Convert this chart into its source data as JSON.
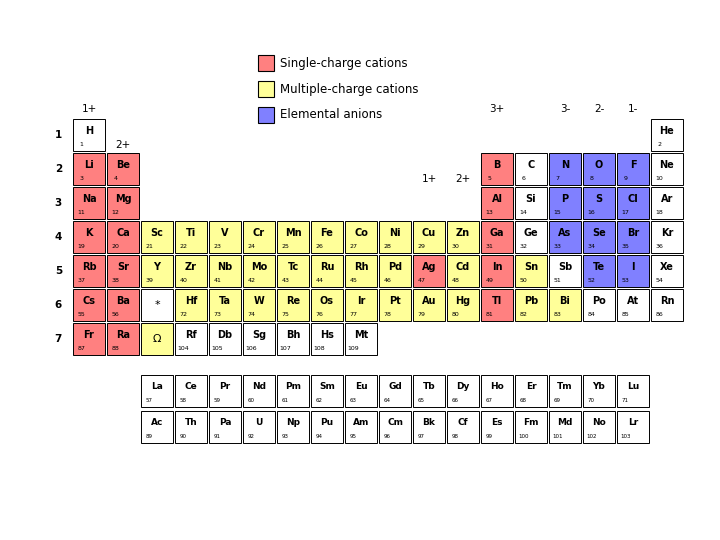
{
  "bg_color": "#ffffff",
  "colors": {
    "single_cation": "#FF8080",
    "multi_cation": "#FFFF99",
    "anion": "#8080FF",
    "none": "#ffffff"
  },
  "legend": {
    "single_cation_label": "Single-charge cations",
    "multi_cation_label": "Multiple-charge cations",
    "anion_label": "Elemental anions"
  },
  "elements": [
    {
      "symbol": "H",
      "number": 1,
      "row": 1,
      "col": 1,
      "color": "none"
    },
    {
      "symbol": "He",
      "number": 2,
      "row": 1,
      "col": 18,
      "color": "none"
    },
    {
      "symbol": "Li",
      "number": 3,
      "row": 2,
      "col": 1,
      "color": "single_cation"
    },
    {
      "symbol": "Be",
      "number": 4,
      "row": 2,
      "col": 2,
      "color": "single_cation"
    },
    {
      "symbol": "B",
      "number": 5,
      "row": 2,
      "col": 13,
      "color": "single_cation"
    },
    {
      "symbol": "C",
      "number": 6,
      "row": 2,
      "col": 14,
      "color": "none"
    },
    {
      "symbol": "N",
      "number": 7,
      "row": 2,
      "col": 15,
      "color": "anion"
    },
    {
      "symbol": "O",
      "number": 8,
      "row": 2,
      "col": 16,
      "color": "anion"
    },
    {
      "symbol": "F",
      "number": 9,
      "row": 2,
      "col": 17,
      "color": "anion"
    },
    {
      "symbol": "Ne",
      "number": 10,
      "row": 2,
      "col": 18,
      "color": "none"
    },
    {
      "symbol": "Na",
      "number": 11,
      "row": 3,
      "col": 1,
      "color": "single_cation"
    },
    {
      "symbol": "Mg",
      "number": 12,
      "row": 3,
      "col": 2,
      "color": "single_cation"
    },
    {
      "symbol": "Al",
      "number": 13,
      "row": 3,
      "col": 13,
      "color": "single_cation"
    },
    {
      "symbol": "Si",
      "number": 14,
      "row": 3,
      "col": 14,
      "color": "none"
    },
    {
      "symbol": "P",
      "number": 15,
      "row": 3,
      "col": 15,
      "color": "anion"
    },
    {
      "symbol": "S",
      "number": 16,
      "row": 3,
      "col": 16,
      "color": "anion"
    },
    {
      "symbol": "Cl",
      "number": 17,
      "row": 3,
      "col": 17,
      "color": "anion"
    },
    {
      "symbol": "Ar",
      "number": 18,
      "row": 3,
      "col": 18,
      "color": "none"
    },
    {
      "symbol": "K",
      "number": 19,
      "row": 4,
      "col": 1,
      "color": "single_cation"
    },
    {
      "symbol": "Ca",
      "number": 20,
      "row": 4,
      "col": 2,
      "color": "single_cation"
    },
    {
      "symbol": "Sc",
      "number": 21,
      "row": 4,
      "col": 3,
      "color": "multi_cation"
    },
    {
      "symbol": "Ti",
      "number": 22,
      "row": 4,
      "col": 4,
      "color": "multi_cation"
    },
    {
      "symbol": "V",
      "number": 23,
      "row": 4,
      "col": 5,
      "color": "multi_cation"
    },
    {
      "symbol": "Cr",
      "number": 24,
      "row": 4,
      "col": 6,
      "color": "multi_cation"
    },
    {
      "symbol": "Mn",
      "number": 25,
      "row": 4,
      "col": 7,
      "color": "multi_cation"
    },
    {
      "symbol": "Fe",
      "number": 26,
      "row": 4,
      "col": 8,
      "color": "multi_cation"
    },
    {
      "symbol": "Co",
      "number": 27,
      "row": 4,
      "col": 9,
      "color": "multi_cation"
    },
    {
      "symbol": "Ni",
      "number": 28,
      "row": 4,
      "col": 10,
      "color": "multi_cation"
    },
    {
      "symbol": "Cu",
      "number": 29,
      "row": 4,
      "col": 11,
      "color": "multi_cation"
    },
    {
      "symbol": "Zn",
      "number": 30,
      "row": 4,
      "col": 12,
      "color": "multi_cation"
    },
    {
      "symbol": "Ga",
      "number": 31,
      "row": 4,
      "col": 13,
      "color": "single_cation"
    },
    {
      "symbol": "Ge",
      "number": 32,
      "row": 4,
      "col": 14,
      "color": "none"
    },
    {
      "symbol": "As",
      "number": 33,
      "row": 4,
      "col": 15,
      "color": "anion"
    },
    {
      "symbol": "Se",
      "number": 34,
      "row": 4,
      "col": 16,
      "color": "anion"
    },
    {
      "symbol": "Br",
      "number": 35,
      "row": 4,
      "col": 17,
      "color": "anion"
    },
    {
      "symbol": "Kr",
      "number": 36,
      "row": 4,
      "col": 18,
      "color": "none"
    },
    {
      "symbol": "Rb",
      "number": 37,
      "row": 5,
      "col": 1,
      "color": "single_cation"
    },
    {
      "symbol": "Sr",
      "number": 38,
      "row": 5,
      "col": 2,
      "color": "single_cation"
    },
    {
      "symbol": "Y",
      "number": 39,
      "row": 5,
      "col": 3,
      "color": "multi_cation"
    },
    {
      "symbol": "Zr",
      "number": 40,
      "row": 5,
      "col": 4,
      "color": "multi_cation"
    },
    {
      "symbol": "Nb",
      "number": 41,
      "row": 5,
      "col": 5,
      "color": "multi_cation"
    },
    {
      "symbol": "Mo",
      "number": 42,
      "row": 5,
      "col": 6,
      "color": "multi_cation"
    },
    {
      "symbol": "Tc",
      "number": 43,
      "row": 5,
      "col": 7,
      "color": "multi_cation"
    },
    {
      "symbol": "Ru",
      "number": 44,
      "row": 5,
      "col": 8,
      "color": "multi_cation"
    },
    {
      "symbol": "Rh",
      "number": 45,
      "row": 5,
      "col": 9,
      "color": "multi_cation"
    },
    {
      "symbol": "Pd",
      "number": 46,
      "row": 5,
      "col": 10,
      "color": "multi_cation"
    },
    {
      "symbol": "Ag",
      "number": 47,
      "row": 5,
      "col": 11,
      "color": "single_cation"
    },
    {
      "symbol": "Cd",
      "number": 48,
      "row": 5,
      "col": 12,
      "color": "multi_cation"
    },
    {
      "symbol": "In",
      "number": 49,
      "row": 5,
      "col": 13,
      "color": "single_cation"
    },
    {
      "symbol": "Sn",
      "number": 50,
      "row": 5,
      "col": 14,
      "color": "multi_cation"
    },
    {
      "symbol": "Sb",
      "number": 51,
      "row": 5,
      "col": 15,
      "color": "none"
    },
    {
      "symbol": "Te",
      "number": 52,
      "row": 5,
      "col": 16,
      "color": "anion"
    },
    {
      "symbol": "I",
      "number": 53,
      "row": 5,
      "col": 17,
      "color": "anion"
    },
    {
      "symbol": "Xe",
      "number": 54,
      "row": 5,
      "col": 18,
      "color": "none"
    },
    {
      "symbol": "Cs",
      "number": 55,
      "row": 6,
      "col": 1,
      "color": "single_cation"
    },
    {
      "symbol": "Ba",
      "number": 56,
      "row": 6,
      "col": 2,
      "color": "single_cation"
    },
    {
      "symbol": "*",
      "number": null,
      "row": 6,
      "col": 3,
      "color": "none"
    },
    {
      "symbol": "Hf",
      "number": 72,
      "row": 6,
      "col": 4,
      "color": "multi_cation"
    },
    {
      "symbol": "Ta",
      "number": 73,
      "row": 6,
      "col": 5,
      "color": "multi_cation"
    },
    {
      "symbol": "W",
      "number": 74,
      "row": 6,
      "col": 6,
      "color": "multi_cation"
    },
    {
      "symbol": "Re",
      "number": 75,
      "row": 6,
      "col": 7,
      "color": "multi_cation"
    },
    {
      "symbol": "Os",
      "number": 76,
      "row": 6,
      "col": 8,
      "color": "multi_cation"
    },
    {
      "symbol": "Ir",
      "number": 77,
      "row": 6,
      "col": 9,
      "color": "multi_cation"
    },
    {
      "symbol": "Pt",
      "number": 78,
      "row": 6,
      "col": 10,
      "color": "multi_cation"
    },
    {
      "symbol": "Au",
      "number": 79,
      "row": 6,
      "col": 11,
      "color": "multi_cation"
    },
    {
      "symbol": "Hg",
      "number": 80,
      "row": 6,
      "col": 12,
      "color": "multi_cation"
    },
    {
      "symbol": "Tl",
      "number": 81,
      "row": 6,
      "col": 13,
      "color": "single_cation"
    },
    {
      "symbol": "Pb",
      "number": 82,
      "row": 6,
      "col": 14,
      "color": "multi_cation"
    },
    {
      "symbol": "Bi",
      "number": 83,
      "row": 6,
      "col": 15,
      "color": "multi_cation"
    },
    {
      "symbol": "Po",
      "number": 84,
      "row": 6,
      "col": 16,
      "color": "none"
    },
    {
      "symbol": "At",
      "number": 85,
      "row": 6,
      "col": 17,
      "color": "none"
    },
    {
      "symbol": "Rn",
      "number": 86,
      "row": 6,
      "col": 18,
      "color": "none"
    },
    {
      "symbol": "Fr",
      "number": 87,
      "row": 7,
      "col": 1,
      "color": "single_cation"
    },
    {
      "symbol": "Ra",
      "number": 88,
      "row": 7,
      "col": 2,
      "color": "single_cation"
    },
    {
      "symbol": "Ω",
      "number": null,
      "row": 7,
      "col": 3,
      "color": "multi_cation"
    },
    {
      "symbol": "Rf",
      "number": 104,
      "row": 7,
      "col": 4,
      "color": "none"
    },
    {
      "symbol": "Db",
      "number": 105,
      "row": 7,
      "col": 5,
      "color": "none"
    },
    {
      "symbol": "Sg",
      "number": 106,
      "row": 7,
      "col": 6,
      "color": "none"
    },
    {
      "symbol": "Bh",
      "number": 107,
      "row": 7,
      "col": 7,
      "color": "none"
    },
    {
      "symbol": "Hs",
      "number": 108,
      "row": 7,
      "col": 8,
      "color": "none"
    },
    {
      "symbol": "Mt",
      "number": 109,
      "row": 7,
      "col": 9,
      "color": "none"
    }
  ],
  "lanthanides": [
    {
      "symbol": "La",
      "number": 57
    },
    {
      "symbol": "Ce",
      "number": 58
    },
    {
      "symbol": "Pr",
      "number": 59
    },
    {
      "symbol": "Nd",
      "number": 60
    },
    {
      "symbol": "Pm",
      "number": 61
    },
    {
      "symbol": "Sm",
      "number": 62
    },
    {
      "symbol": "Eu",
      "number": 63
    },
    {
      "symbol": "Gd",
      "number": 64
    },
    {
      "symbol": "Tb",
      "number": 65
    },
    {
      "symbol": "Dy",
      "number": 66
    },
    {
      "symbol": "Ho",
      "number": 67
    },
    {
      "symbol": "Er",
      "number": 68
    },
    {
      "symbol": "Tm",
      "number": 69
    },
    {
      "symbol": "Yb",
      "number": 70
    },
    {
      "symbol": "Lu",
      "number": 71
    }
  ],
  "actinides": [
    {
      "symbol": "Ac",
      "number": 89
    },
    {
      "symbol": "Th",
      "number": 90
    },
    {
      "symbol": "Pa",
      "number": 91
    },
    {
      "symbol": "U",
      "number": 92
    },
    {
      "symbol": "Np",
      "number": 93
    },
    {
      "symbol": "Pu",
      "number": 94
    },
    {
      "symbol": "Am",
      "number": 95
    },
    {
      "symbol": "Cm",
      "number": 96
    },
    {
      "symbol": "Bk",
      "number": 97
    },
    {
      "symbol": "Cf",
      "number": 98
    },
    {
      "symbol": "Es",
      "number": 99
    },
    {
      "symbol": "Fm",
      "number": 100
    },
    {
      "symbol": "Md",
      "number": 101
    },
    {
      "symbol": "No",
      "number": 102
    },
    {
      "symbol": "Lr",
      "number": 103
    }
  ]
}
